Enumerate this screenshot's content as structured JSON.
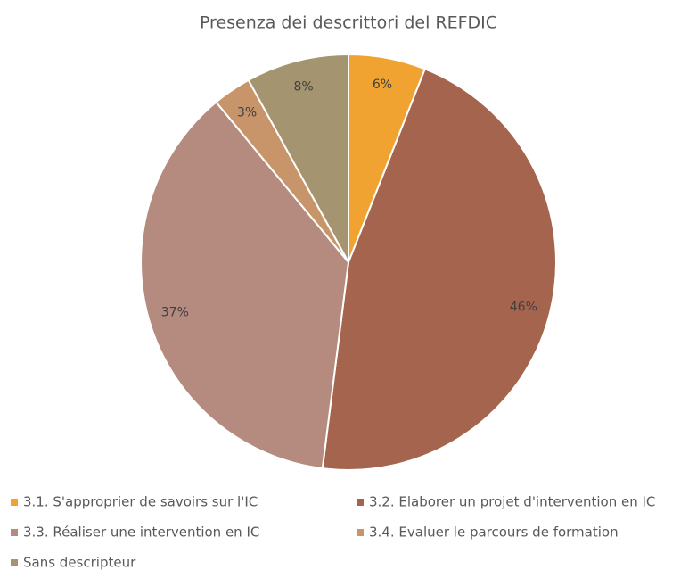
{
  "chart_data": {
    "type": "pie",
    "title": "Presenza dei descrittori del REFDIC",
    "categories": [
      "3.1. S'approprier de savoirs sur l'IC",
      "3.2. Elaborer un projet d'intervention en IC",
      "3.3. Réaliser une intervention en IC",
      "3.4. Evaluer le parcours de formation",
      "Sans descripteur"
    ],
    "values": [
      6,
      46,
      37,
      3,
      8
    ],
    "value_labels": [
      "6%",
      "46%",
      "37%",
      "3%",
      "8%"
    ],
    "colors": [
      "#f0a330",
      "#a5644e",
      "#b58b80",
      "#c8956a",
      "#a4946f"
    ],
    "legend": "bottom"
  }
}
